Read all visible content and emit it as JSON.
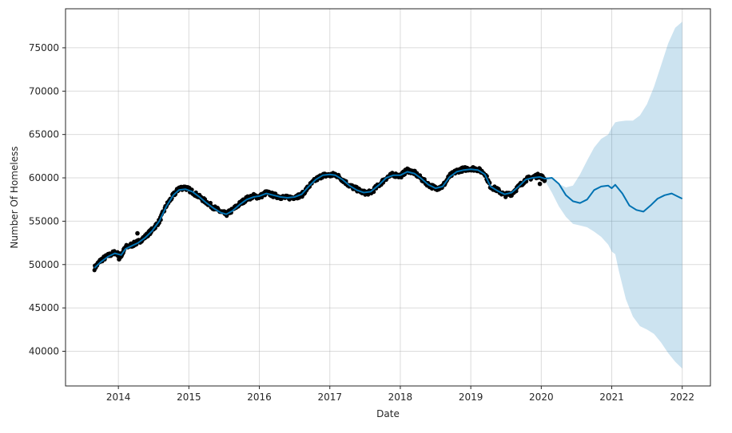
{
  "chart_data": {
    "type": "line",
    "title": "",
    "xlabel": "Date",
    "ylabel": "Number Of Homeless",
    "x_ticks": [
      "2014",
      "2015",
      "2016",
      "2017",
      "2018",
      "2019",
      "2020",
      "2021",
      "2022"
    ],
    "y_ticks": [
      "40000",
      "45000",
      "50000",
      "55000",
      "60000",
      "65000",
      "70000",
      "75000"
    ],
    "xlim": [
      2013.25,
      2022.4
    ],
    "ylim": [
      36000,
      79500
    ],
    "grid": true,
    "colors": {
      "observed": "#000000",
      "forecast": "#0072B2",
      "interval": "#0072B2"
    },
    "series": [
      {
        "kind": "observed-points",
        "x": [
          2013.66,
          2013.75,
          2013.85,
          2013.95,
          2014.04,
          2014.1,
          2014.2,
          2014.28,
          2014.38,
          2014.48,
          2014.58,
          2014.68,
          2014.78,
          2014.86,
          2014.95,
          2015.05,
          2015.15,
          2015.25,
          2015.35,
          2015.45,
          2015.53,
          2015.62,
          2015.72,
          2015.82,
          2015.92,
          2016.0,
          2016.1,
          2016.2,
          2016.3,
          2016.4,
          2016.5,
          2016.6,
          2016.7,
          2016.8,
          2016.9,
          2017.0,
          2017.08,
          2017.18,
          2017.28,
          2017.38,
          2017.48,
          2017.58,
          2017.7,
          2017.8,
          2017.9,
          2018.0,
          2018.1,
          2018.2,
          2018.3,
          2018.4,
          2018.5,
          2018.6,
          2018.7,
          2018.8,
          2018.9,
          2019.0,
          2019.1,
          2019.2,
          2019.28,
          2019.38,
          2019.48,
          2019.58,
          2019.68,
          2019.78,
          2019.88,
          2019.98,
          2020.05
        ],
        "y": [
          49600,
          50500,
          51000,
          51400,
          51000,
          52000,
          52300,
          52600,
          53200,
          54000,
          55000,
          56800,
          58000,
          58800,
          58900,
          58400,
          57800,
          57200,
          56600,
          56100,
          55800,
          56300,
          57000,
          57600,
          57900,
          57800,
          58300,
          58000,
          57800,
          57700,
          57800,
          58000,
          59000,
          59800,
          60300,
          60300,
          60400,
          59800,
          59100,
          58700,
          58300,
          58300,
          59200,
          60000,
          60400,
          60200,
          60900,
          60600,
          59900,
          59200,
          58800,
          59000,
          60200,
          60800,
          61000,
          61100,
          61000,
          60500,
          59000,
          58600,
          58000,
          58200,
          59000,
          59800,
          60100,
          60300,
          59800
        ]
      },
      {
        "kind": "forecast-line",
        "x": [
          2013.66,
          2013.75,
          2013.85,
          2013.95,
          2014.04,
          2014.1,
          2014.2,
          2014.28,
          2014.38,
          2014.48,
          2014.58,
          2014.68,
          2014.78,
          2014.86,
          2014.95,
          2015.05,
          2015.15,
          2015.25,
          2015.35,
          2015.45,
          2015.53,
          2015.62,
          2015.72,
          2015.82,
          2015.92,
          2016.0,
          2016.1,
          2016.2,
          2016.3,
          2016.4,
          2016.5,
          2016.6,
          2016.7,
          2016.8,
          2016.9,
          2017.0,
          2017.08,
          2017.18,
          2017.28,
          2017.38,
          2017.48,
          2017.58,
          2017.7,
          2017.8,
          2017.9,
          2018.0,
          2018.1,
          2018.2,
          2018.3,
          2018.4,
          2018.5,
          2018.6,
          2018.7,
          2018.8,
          2018.9,
          2019.0,
          2019.1,
          2019.2,
          2019.28,
          2019.38,
          2019.48,
          2019.58,
          2019.68,
          2019.78,
          2019.88,
          2019.98,
          2020.05,
          2020.15,
          2020.25,
          2020.35,
          2020.45,
          2020.55,
          2020.65,
          2020.75,
          2020.85,
          2020.95,
          2021.0,
          2021.05,
          2021.15,
          2021.25,
          2021.35,
          2021.45,
          2021.55,
          2021.65,
          2021.75,
          2021.85,
          2021.95,
          2022.0
        ],
        "y": [
          49600,
          50300,
          50900,
          51300,
          51100,
          51800,
          52200,
          52500,
          53100,
          53900,
          55000,
          56700,
          58000,
          58600,
          58700,
          58400,
          57800,
          57100,
          56500,
          56000,
          55800,
          56200,
          56900,
          57500,
          57800,
          57900,
          58200,
          58000,
          57800,
          57700,
          57800,
          58100,
          59000,
          59800,
          60300,
          60400,
          60300,
          59800,
          59100,
          58600,
          58300,
          58400,
          59200,
          60000,
          60300,
          60300,
          60700,
          60500,
          59900,
          59200,
          58800,
          59000,
          60100,
          60700,
          60900,
          61000,
          60900,
          60400,
          59000,
          58500,
          58100,
          58300,
          59000,
          59800,
          60000,
          60100,
          59900,
          60000,
          59300,
          58000,
          57300,
          57100,
          57500,
          58600,
          59000,
          59100,
          58800,
          59200,
          58200,
          56800,
          56300,
          56100,
          56800,
          57600,
          58000,
          58200,
          57800,
          57600
        ]
      },
      {
        "kind": "uncertainty-band",
        "x": [
          2020.05,
          2020.15,
          2020.25,
          2020.35,
          2020.45,
          2020.55,
          2020.65,
          2020.75,
          2020.85,
          2020.95,
          2021.0,
          2021.05,
          2021.1,
          2021.2,
          2021.3,
          2021.4,
          2021.5,
          2021.6,
          2021.7,
          2021.8,
          2021.9,
          2022.0
        ],
        "upper": [
          60200,
          59900,
          59300,
          58900,
          59100,
          60400,
          62000,
          63500,
          64500,
          65000,
          65800,
          66400,
          66500,
          66600,
          66600,
          67200,
          68500,
          70500,
          73000,
          75500,
          77300,
          78000
        ],
        "lower": [
          59700,
          58300,
          56700,
          55500,
          54700,
          54500,
          54300,
          53800,
          53200,
          52300,
          51500,
          51200,
          49300,
          46000,
          44000,
          42900,
          42500,
          42000,
          41000,
          39800,
          38800,
          38000
        ]
      }
    ]
  }
}
